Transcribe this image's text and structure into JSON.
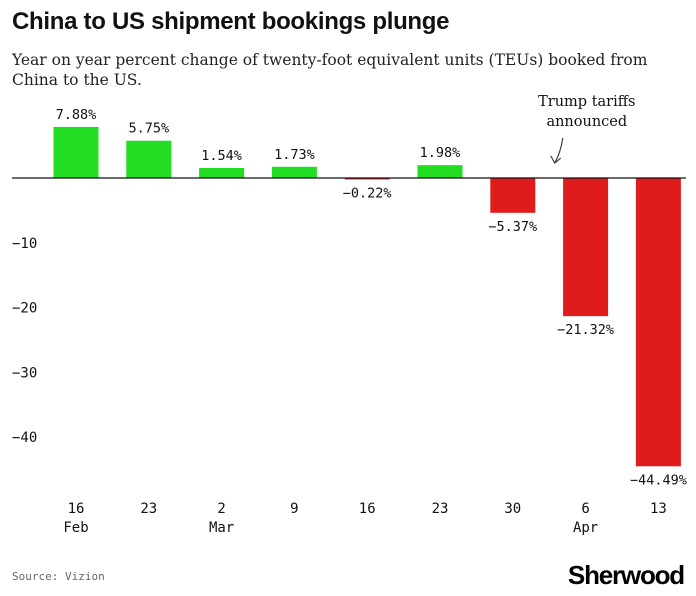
{
  "header": {
    "title": "China to US shipment bookings plunge",
    "subtitle": "Year on year percent change of twenty-foot equivalent units (TEUs) booked from China to the US."
  },
  "footer": {
    "source": "Source: Vizion",
    "logo": "Sherwood"
  },
  "chart_data": {
    "type": "bar",
    "categories": [
      "16 Feb",
      "23",
      "2 Mar",
      "9",
      "16",
      "23",
      "30",
      "6 Apr",
      "13"
    ],
    "x_tick_day": [
      "16",
      "23",
      "2",
      "9",
      "16",
      "23",
      "30",
      "6",
      "13"
    ],
    "x_tick_month": [
      "Feb",
      "",
      "Mar",
      "",
      "",
      "",
      "",
      "Apr",
      ""
    ],
    "values": [
      7.88,
      5.75,
      1.54,
      1.73,
      -0.22,
      1.98,
      -5.37,
      -21.32,
      -44.49
    ],
    "data_labels": [
      "7.88%",
      "5.75%",
      "1.54%",
      "1.73%",
      "−0.22%",
      "1.98%",
      "−5.37%",
      "−21.32%",
      "−44.49%"
    ],
    "yticks": [
      -10,
      -20,
      -30,
      -40
    ],
    "ytick_labels": [
      "−10",
      "−20",
      "−30",
      "−40"
    ],
    "ylim": [
      -46,
      8
    ],
    "grid": false,
    "annotation": {
      "lines": [
        "Trump tariffs",
        "announced"
      ],
      "category_index": 6
    },
    "colors": {
      "positive": "#22dd22",
      "negative": "#e01b1b",
      "baseline": "#111111"
    }
  }
}
